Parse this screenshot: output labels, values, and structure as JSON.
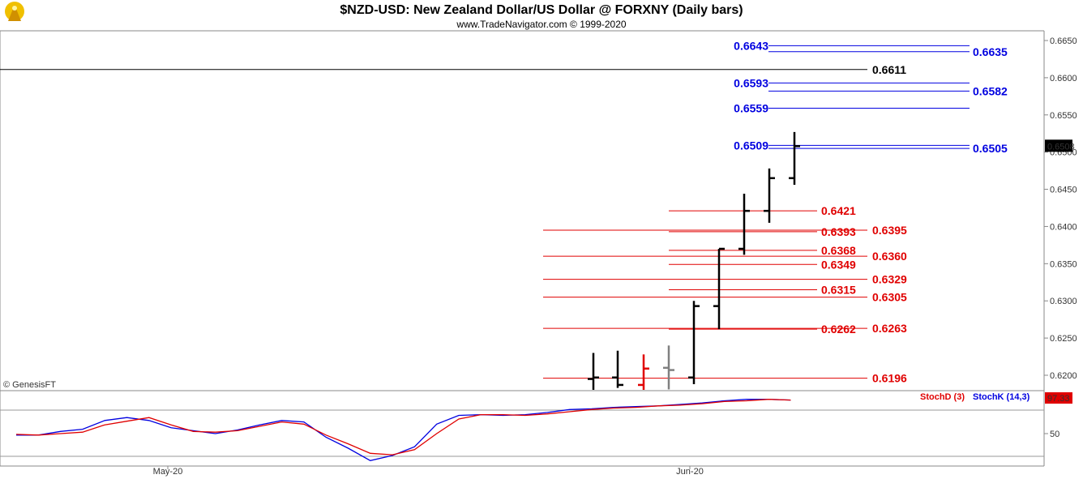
{
  "header": {
    "title": "$NZD-USD:  New Zealand Dollar/US Dollar @ FORXNY  (Daily bars)",
    "subtitle": "www.TradeNavigator.com © 1999-2020"
  },
  "watermark": "© GenesisFT",
  "colors": {
    "blue": "#0000e0",
    "red": "#e00000",
    "black": "#000000",
    "gray": "#808080",
    "grid": "#888888"
  },
  "price_axis": {
    "ticks": [
      "0.6650",
      "0.6600",
      "0.6550",
      "0.6500",
      "0.6450",
      "0.6400",
      "0.6350",
      "0.6300",
      "0.6250",
      "0.6200"
    ],
    "last_price": "0.6508"
  },
  "stoch_panel": {
    "d_label": "StochD (3)",
    "k_label": "StochK (14,3)",
    "value": "97.33",
    "tick": "50"
  },
  "x_axis": {
    "labels": [
      "May-20",
      "Jun-20"
    ]
  },
  "chart_data": [
    {
      "type": "ohlc",
      "ylim": [
        0.618,
        0.667
      ],
      "bars": [
        {
          "open": 0.6195,
          "high": 0.623,
          "low": 0.618,
          "close": 0.6197,
          "color": "black"
        },
        {
          "open": 0.6197,
          "high": 0.6233,
          "low": 0.6183,
          "close": 0.6187,
          "color": "black"
        },
        {
          "open": 0.6187,
          "high": 0.6228,
          "low": 0.618,
          "close": 0.6209,
          "color": "red"
        },
        {
          "open": 0.621,
          "high": 0.624,
          "low": 0.6181,
          "close": 0.6207,
          "color": "gray"
        },
        {
          "open": 0.6197,
          "high": 0.63,
          "low": 0.6188,
          "close": 0.6293,
          "color": "black"
        },
        {
          "open": 0.6293,
          "high": 0.637,
          "low": 0.6262,
          "close": 0.637,
          "color": "black"
        },
        {
          "open": 0.637,
          "high": 0.6444,
          "low": 0.6362,
          "close": 0.6421,
          "color": "black"
        },
        {
          "open": 0.6421,
          "high": 0.6478,
          "low": 0.6405,
          "close": 0.6465,
          "color": "black"
        },
        {
          "open": 0.6465,
          "high": 0.6527,
          "low": 0.6456,
          "close": 0.6508,
          "color": "black"
        }
      ],
      "levels": [
        {
          "label": "0.6643",
          "value": 0.6643,
          "color": "blue",
          "side": "left"
        },
        {
          "label": "0.6635",
          "value": 0.6635,
          "color": "blue",
          "side": "right"
        },
        {
          "label": "0.6611",
          "value": 0.6611,
          "color": "black",
          "side": "right"
        },
        {
          "label": "0.6593",
          "value": 0.6593,
          "color": "blue",
          "side": "left"
        },
        {
          "label": "0.6582",
          "value": 0.6582,
          "color": "blue",
          "side": "right"
        },
        {
          "label": "0.6559",
          "value": 0.6559,
          "color": "blue",
          "side": "left"
        },
        {
          "label": "0.6509",
          "value": 0.6509,
          "color": "blue",
          "side": "left"
        },
        {
          "label": "0.6505",
          "value": 0.6505,
          "color": "blue",
          "side": "right"
        },
        {
          "label": "0.6421",
          "value": 0.6421,
          "color": "red",
          "side": "left"
        },
        {
          "label": "0.6393",
          "value": 0.6393,
          "color": "red",
          "side": "left"
        },
        {
          "label": "0.6395",
          "value": 0.6395,
          "color": "red",
          "side": "right"
        },
        {
          "label": "0.6368",
          "value": 0.6368,
          "color": "red",
          "side": "left"
        },
        {
          "label": "0.6360",
          "value": 0.636,
          "color": "red",
          "side": "right"
        },
        {
          "label": "0.6349",
          "value": 0.6349,
          "color": "red",
          "side": "left"
        },
        {
          "label": "0.6329",
          "value": 0.6329,
          "color": "red",
          "side": "right"
        },
        {
          "label": "0.6315",
          "value": 0.6315,
          "color": "red",
          "side": "left"
        },
        {
          "label": "0.6305",
          "value": 0.6305,
          "color": "red",
          "side": "right"
        },
        {
          "label": "0.6262",
          "value": 0.6262,
          "color": "red",
          "side": "left"
        },
        {
          "label": "0.6263",
          "value": 0.6263,
          "color": "red",
          "side": "right"
        },
        {
          "label": "0.6196",
          "value": 0.6196,
          "color": "red",
          "side": "right"
        }
      ]
    },
    {
      "type": "line",
      "ylim": [
        0,
        100
      ],
      "series": [
        {
          "name": "StochK (14,3)",
          "color": "blue",
          "values": [
            48,
            48,
            53,
            56,
            68,
            72,
            68,
            58,
            54,
            50,
            55,
            62,
            68,
            66,
            45,
            30,
            13,
            20,
            32,
            63,
            75,
            76,
            75,
            76,
            79,
            83,
            84,
            86,
            87,
            88,
            90,
            92,
            95,
            97,
            97,
            96
          ]
        },
        {
          "name": "StochD (3)",
          "color": "red",
          "values": [
            49,
            48,
            50,
            52,
            62,
            67,
            72,
            62,
            53,
            52,
            54,
            60,
            66,
            63,
            48,
            36,
            23,
            21,
            28,
            50,
            70,
            76,
            76,
            75,
            77,
            80,
            83,
            85,
            86,
            88,
            89,
            91,
            94,
            95,
            97,
            96
          ]
        }
      ]
    }
  ]
}
